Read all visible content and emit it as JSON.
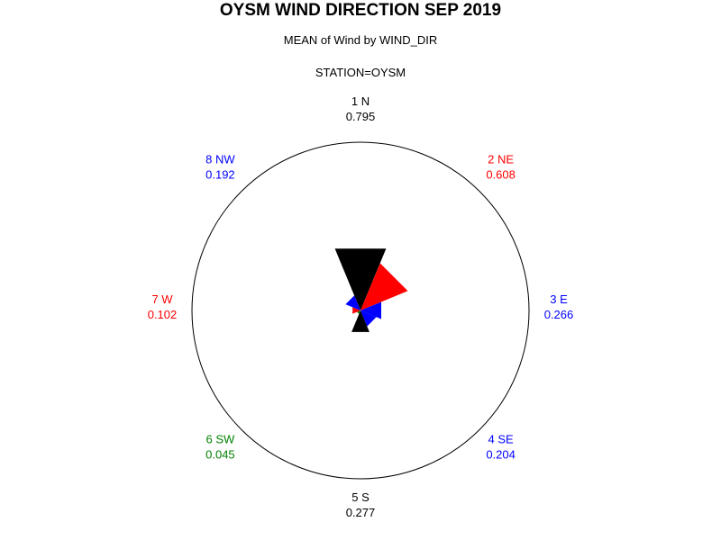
{
  "header": {
    "title": "OYSM WIND DIRECTION SEP 2019",
    "subtitle": "MEAN of Wind by WIND_DIR",
    "station": "STATION=OYSM"
  },
  "chart_data": {
    "type": "pie",
    "subtype": "star",
    "title": "OYSM WIND DIRECTION SEP 2019",
    "subtitle": "MEAN of Wind by WIND_DIR",
    "categories": [
      "1 N",
      "2 NE",
      "3 E",
      "4 SE",
      "5 S",
      "6 SW",
      "7 W",
      "8 NW"
    ],
    "values_text": [
      "0.795",
      "0.608",
      "0.266",
      "0.204",
      "0.277",
      "0.045",
      "0.102",
      "0.192"
    ],
    "values": [
      0.795,
      0.608,
      0.266,
      0.204,
      0.277,
      0.045,
      0.102,
      0.192
    ],
    "colors": [
      "#000000",
      "#ff0000",
      "#0000ff",
      "#0000ff",
      "#000000",
      "#008000",
      "#ff0000",
      "#0000ff"
    ],
    "rmax": 2.0,
    "grid": false,
    "legend": "none"
  }
}
